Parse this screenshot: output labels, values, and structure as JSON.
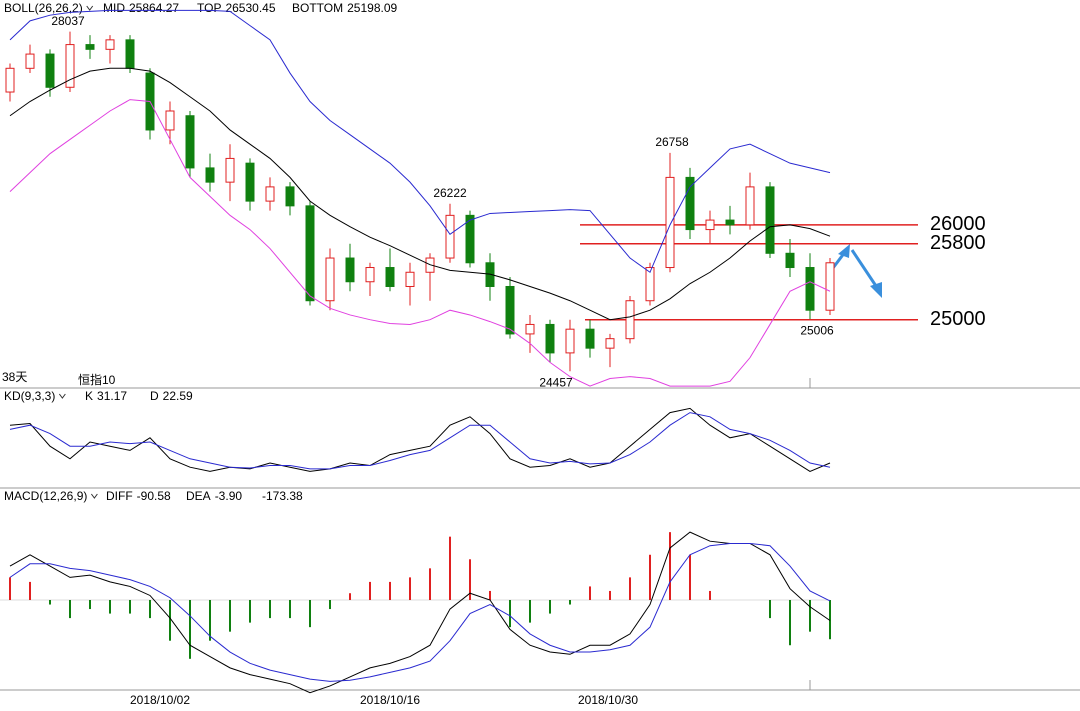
{
  "chart_data": [
    {
      "type": "candlestick",
      "header": {
        "name": "BOLL(26,26,2)",
        "stats": [
          {
            "label": "MID",
            "value": 25864.27
          },
          {
            "label": "TOP",
            "value": 26530.45
          },
          {
            "label": "BOTTOM",
            "value": 25198.09
          }
        ]
      },
      "ylim": [
        24280,
        28370
      ],
      "candles": [
        [
          27400,
          27700,
          27300,
          27650
        ],
        [
          27650,
          27900,
          27600,
          27800
        ],
        [
          27800,
          27850,
          27350,
          27450
        ],
        [
          27450,
          28037,
          27400,
          27900
        ],
        [
          27900,
          28000,
          27750,
          27850
        ],
        [
          27850,
          28000,
          27700,
          27950
        ],
        [
          27950,
          28000,
          27600,
          27650
        ],
        [
          27600,
          27650,
          26900,
          27000
        ],
        [
          27000,
          27300,
          26850,
          27200
        ],
        [
          27150,
          27200,
          26500,
          26600
        ],
        [
          26600,
          26750,
          26350,
          26450
        ],
        [
          26450,
          26850,
          26250,
          26700
        ],
        [
          26650,
          26700,
          26150,
          26250
        ],
        [
          26250,
          26500,
          26150,
          26400
        ],
        [
          26400,
          26450,
          26100,
          26200
        ],
        [
          26200,
          26250,
          25150,
          25200
        ],
        [
          25200,
          25750,
          25100,
          25650
        ],
        [
          25650,
          25800,
          25300,
          25400
        ],
        [
          25400,
          25600,
          25250,
          25550
        ],
        [
          25550,
          25750,
          25300,
          25350
        ],
        [
          25350,
          25600,
          25150,
          25500
        ],
        [
          25500,
          25700,
          25200,
          25650
        ],
        [
          25650,
          26222,
          25600,
          26100
        ],
        [
          26100,
          26150,
          25550,
          25600
        ],
        [
          25600,
          25700,
          25200,
          25350
        ],
        [
          25350,
          25450,
          24800,
          24850
        ],
        [
          24850,
          25050,
          24650,
          24950
        ],
        [
          24950,
          25000,
          24550,
          24650
        ],
        [
          24650,
          25000,
          24457,
          24900
        ],
        [
          24900,
          25000,
          24600,
          24700
        ],
        [
          24700,
          24850,
          24500,
          24800
        ],
        [
          24800,
          25250,
          24750,
          25200
        ],
        [
          25200,
          25600,
          25150,
          25550
        ],
        [
          25550,
          26758,
          25500,
          26500
        ],
        [
          26500,
          26600,
          25850,
          25950
        ],
        [
          25950,
          26150,
          25800,
          26050
        ],
        [
          26050,
          26200,
          25900,
          26000
        ],
        [
          26000,
          26550,
          25950,
          26400
        ],
        [
          26400,
          26450,
          25650,
          25700
        ],
        [
          25700,
          25850,
          25450,
          25550
        ],
        [
          25550,
          25700,
          25006,
          25100
        ],
        [
          25100,
          25650,
          25050,
          25600
        ]
      ],
      "series": [
        {
          "name": "MID",
          "color": "#000000",
          "values": [
            27150,
            27300,
            27420,
            27530,
            27620,
            27650,
            27650,
            27620,
            27500,
            27350,
            27200,
            27000,
            26850,
            26700,
            26500,
            26250,
            26100,
            25980,
            25870,
            25780,
            25680,
            25580,
            25520,
            25500,
            25480,
            25420,
            25350,
            25280,
            25200,
            25100,
            25000,
            25030,
            25100,
            25220,
            25380,
            25500,
            25650,
            25830,
            25980,
            26000,
            25960,
            25880
          ]
        },
        {
          "name": "TOP",
          "color": "#2a2ad0",
          "values": [
            27950,
            28150,
            28210,
            28240,
            28250,
            28260,
            28260,
            28260,
            28260,
            28260,
            28260,
            28250,
            28100,
            27950,
            27600,
            27300,
            27100,
            26950,
            26800,
            26650,
            26450,
            26200,
            25900,
            26050,
            26120,
            26130,
            26140,
            26150,
            26160,
            26150,
            25900,
            25650,
            25500,
            26000,
            26400,
            26600,
            26800,
            26850,
            26750,
            26650,
            26600,
            26550
          ]
        },
        {
          "name": "BOTTOM",
          "color": "#e040e0",
          "values": [
            26350,
            26550,
            26750,
            26900,
            27050,
            27200,
            27320,
            27300,
            26900,
            26500,
            26300,
            26100,
            25950,
            25750,
            25500,
            25250,
            25120,
            25050,
            25000,
            24960,
            24950,
            25000,
            25100,
            25050,
            24980,
            24900,
            24750,
            24550,
            24400,
            24300,
            24380,
            24400,
            24380,
            24300,
            24300,
            24300,
            24350,
            24600,
            24950,
            25300,
            25400,
            25300
          ]
        }
      ],
      "levels": [
        26000,
        25800,
        25000
      ],
      "peaks": [
        28037,
        26222,
        26758,
        24457,
        25006
      ],
      "footer": [
        "38天",
        "恒指10"
      ]
    },
    {
      "type": "line",
      "header": {
        "name": "KD(9,3,3)",
        "stats": [
          {
            "label": "K",
            "value": 31.17
          },
          {
            "label": "D",
            "value": 22.59
          }
        ]
      },
      "ylim": [
        0,
        100
      ],
      "series": [
        {
          "name": "K",
          "color": "#000000",
          "values": [
            70,
            72,
            45,
            30,
            50,
            45,
            40,
            55,
            30,
            20,
            15,
            20,
            18,
            25,
            20,
            15,
            18,
            25,
            22,
            35,
            40,
            45,
            70,
            80,
            60,
            30,
            20,
            22,
            30,
            20,
            25,
            45,
            65,
            85,
            90,
            70,
            55,
            60,
            45,
            30,
            15,
            25
          ]
        },
        {
          "name": "D",
          "color": "#2a2ad0",
          "values": [
            65,
            70,
            60,
            45,
            45,
            50,
            48,
            50,
            40,
            30,
            25,
            20,
            19,
            22,
            22,
            18,
            18,
            22,
            22,
            28,
            35,
            40,
            55,
            70,
            70,
            50,
            30,
            25,
            27,
            24,
            25,
            35,
            50,
            70,
            85,
            80,
            65,
            60,
            52,
            40,
            25,
            20
          ]
        }
      ]
    },
    {
      "type": "macd",
      "header": {
        "name": "MACD(12,26,9)",
        "stats": [
          {
            "label": "DIFF",
            "value": -90.58
          },
          {
            "label": "DEA",
            "value": -3.9,
            "value_label": "-3.90"
          },
          {
            "value": -173.38
          }
        ]
      },
      "ylim": [
        -420,
        420
      ],
      "histogram": [
        100,
        80,
        -20,
        -80,
        -40,
        -60,
        -60,
        -80,
        -180,
        -260,
        -180,
        -140,
        -100,
        -80,
        -80,
        -120,
        -40,
        30,
        80,
        80,
        100,
        140,
        280,
        180,
        40,
        -120,
        -100,
        -60,
        -20,
        60,
        40,
        100,
        200,
        300,
        200,
        40,
        0,
        0,
        -80,
        -200,
        -140,
        -173.38
      ],
      "series": [
        {
          "name": "DIFF",
          "color": "#000000",
          "values": [
            150,
            200,
            150,
            100,
            110,
            80,
            60,
            20,
            -80,
            -200,
            -250,
            -300,
            -330,
            -350,
            -370,
            -410,
            -380,
            -340,
            -300,
            -280,
            -250,
            -200,
            -40,
            30,
            0,
            -130,
            -200,
            -230,
            -240,
            -200,
            -200,
            -150,
            -20,
            230,
            300,
            260,
            250,
            250,
            200,
            50,
            -30,
            -90.58
          ]
        },
        {
          "name": "DEA",
          "color": "#2a2ad0",
          "values": [
            100,
            160,
            160,
            140,
            130,
            110,
            90,
            60,
            10,
            -70,
            -160,
            -230,
            -280,
            -310,
            -330,
            -350,
            -360,
            -355,
            -340,
            -320,
            -300,
            -270,
            -180,
            -60,
            -20,
            -70,
            -150,
            -200,
            -230,
            -230,
            -220,
            -200,
            -120,
            80,
            200,
            240,
            250,
            250,
            240,
            150,
            40,
            -4
          ]
        }
      ]
    }
  ],
  "x_labels": [
    "2018/10/02",
    "2018/10/16",
    "2018/10/30"
  ]
}
